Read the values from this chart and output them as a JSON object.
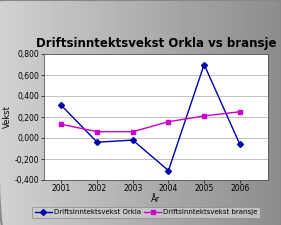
{
  "title": "Driftsinntektsvekst Orkla vs bransje",
  "xlabel": "År",
  "ylabel": "Vekst",
  "years": [
    2001,
    2002,
    2003,
    2004,
    2005,
    2006
  ],
  "orkla": [
    0.31,
    -0.04,
    -0.02,
    -0.31,
    0.7,
    -0.06
  ],
  "bransje": [
    0.13,
    0.06,
    0.06,
    0.155,
    0.21,
    0.25
  ],
  "orkla_color": "#0000AA",
  "bransje_color": "#CC00CC",
  "ylim": [
    -0.4,
    0.8
  ],
  "yticks": [
    -0.4,
    -0.2,
    0.0,
    0.2,
    0.4,
    0.6,
    0.8
  ],
  "ytick_labels": [
    "-0,400",
    "-0,200",
    "0,000",
    "0,200",
    "0,400",
    "0,600",
    "0,800"
  ],
  "legend_orkla": "Driftsinntektsvekst Orkla",
  "legend_bransje": "Driftsinntektsvekst bransje",
  "bg_color": "#aaaaaa",
  "plot_bg": "#ffffff",
  "title_fontsize": 8.5,
  "label_fontsize": 6,
  "tick_fontsize": 5.5,
  "legend_fontsize": 5
}
